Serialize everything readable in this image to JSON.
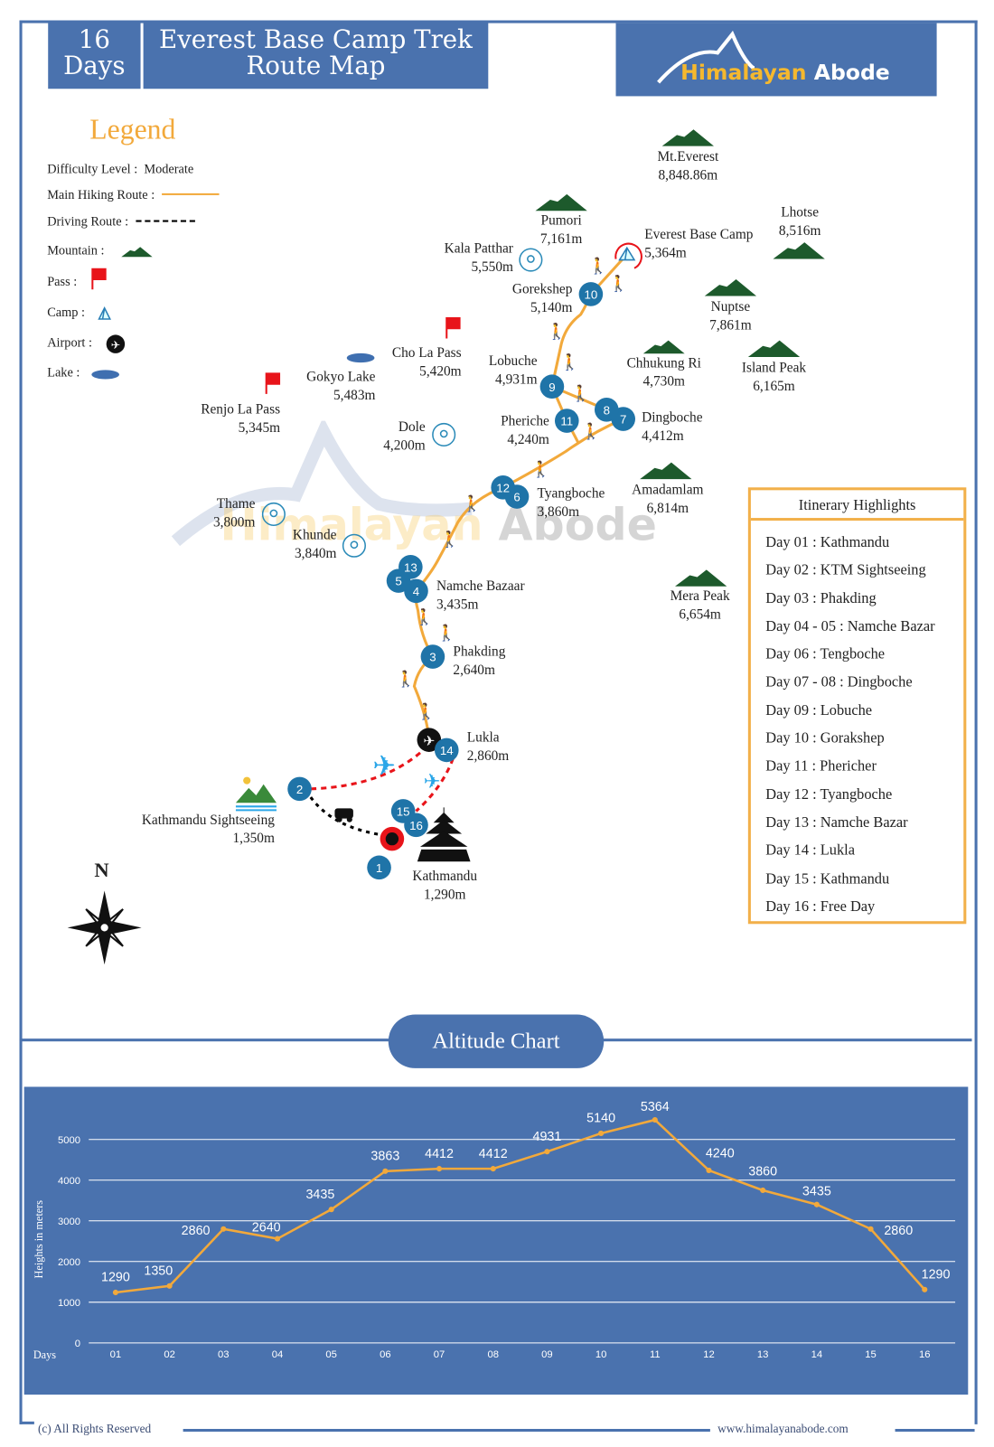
{
  "header": {
    "days_number": "16",
    "days_label": "Days",
    "title_line1": "Everest Base Camp Trek",
    "title_line2": "Route Map",
    "logo_part1": "Himalayan",
    "logo_part2": "Abode"
  },
  "legend": {
    "title": "Legend",
    "difficulty_label": "Difficulty Level :",
    "difficulty_value": "Moderate",
    "hiking_route": "Main Hiking Route :",
    "driving_route": "Driving Route :",
    "mountain": "Mountain :",
    "pass": "Pass :",
    "camp": "Camp :",
    "airport": "Airport :",
    "lake": "Lake :"
  },
  "colors": {
    "brand_blue": "#4a72ae",
    "route_orange": "#f2a93b",
    "badge_blue": "#1f74a8",
    "pass_red": "#e8141a",
    "mountain_green": "#1d5a2c"
  },
  "places": [
    {
      "name": "Mt.Everest",
      "alt": "8,848.86m"
    },
    {
      "name": "Pumori",
      "alt": "7,161m"
    },
    {
      "name": "Lhotse",
      "alt": "8,516m"
    },
    {
      "name": "Everest Base Camp",
      "alt": "5,364m"
    },
    {
      "name": "Kala Patthar",
      "alt": "5,550m"
    },
    {
      "name": "Gorekshep",
      "alt": "5,140m"
    },
    {
      "name": "Nuptse",
      "alt": "7,861m"
    },
    {
      "name": "Cho La Pass",
      "alt": "5,420m"
    },
    {
      "name": "Gokyo Lake",
      "alt": "5,483m"
    },
    {
      "name": "Lobuche",
      "alt": "4,931m"
    },
    {
      "name": "Chhukung Ri",
      "alt": "4,730m"
    },
    {
      "name": "Island Peak",
      "alt": "6,165m"
    },
    {
      "name": "Renjo La Pass",
      "alt": "5,345m"
    },
    {
      "name": "Dole",
      "alt": "4,200m"
    },
    {
      "name": "Pheriche",
      "alt": "4,240m"
    },
    {
      "name": "Dingboche",
      "alt": "4,412m"
    },
    {
      "name": "Tyangboche",
      "alt": "3,860m"
    },
    {
      "name": "Amadamlam",
      "alt": "6,814m"
    },
    {
      "name": "Thame",
      "alt": "3,800m"
    },
    {
      "name": "Khunde",
      "alt": "3,840m"
    },
    {
      "name": "Namche Bazaar",
      "alt": "3,435m"
    },
    {
      "name": "Mera Peak",
      "alt": "6,654m"
    },
    {
      "name": "Phakding",
      "alt": "2,640m"
    },
    {
      "name": "Lukla",
      "alt": "2,860m"
    },
    {
      "name": "Kathmandu Sightseeing",
      "alt": "1,350m"
    },
    {
      "name": "Kathmandu",
      "alt": "1,290m"
    }
  ],
  "day_markers": [
    "1",
    "2",
    "3",
    "4",
    "5",
    "6",
    "7",
    "8",
    "9",
    "10",
    "11",
    "12",
    "13",
    "14",
    "15",
    "16"
  ],
  "watermark": {
    "part1": "Himalayan",
    "part2": "Abode"
  },
  "compass": {
    "north": "N"
  },
  "itinerary": {
    "title": "Itinerary Highlights",
    "items": [
      "Day 01 : Kathmandu",
      "Day 02 : KTM Sightseeing",
      "Day 03 : Phakding",
      "Day 04 - 05 : Namche Bazar",
      "Day 06 : Tengboche",
      "Day 07 - 08 : Dingboche",
      "Day 09 : Lobuche",
      "Day 10 : Gorakshep",
      "Day 11 : Phericher",
      "Day 12 : Tyangboche",
      "Day 13 : Namche Bazar",
      "Day 14 : Lukla",
      "Day 15 : Kathmandu",
      "Day 16 : Free Day"
    ]
  },
  "altitude_title": "Altitude Chart",
  "chart_data": {
    "type": "line",
    "xlabel": "Days",
    "ylabel": "Heights in meters",
    "categories": [
      "01",
      "02",
      "03",
      "04",
      "05",
      "06",
      "07",
      "08",
      "09",
      "10",
      "11",
      "12",
      "13",
      "14",
      "15",
      "16"
    ],
    "values": [
      1290,
      1350,
      2860,
      2640,
      3435,
      3863,
      4412,
      4412,
      4931,
      5140,
      5364,
      4240,
      3860,
      3435,
      2860,
      1290
    ],
    "plotted_values": [
      1240,
      1400,
      2800,
      2560,
      3280,
      4220,
      4280,
      4280,
      4700,
      5150,
      5480,
      4240,
      3750,
      3400,
      2800,
      1310
    ],
    "yticks": [
      0,
      1000,
      2000,
      3000,
      4000,
      5000
    ],
    "ylim": [
      0,
      5500
    ],
    "grid": true,
    "line_color": "#f2a93b",
    "background": "#4a72ae"
  },
  "footer": {
    "copyright": "(c) All Rights Reserved",
    "website": "www.himalayanabode.com"
  }
}
